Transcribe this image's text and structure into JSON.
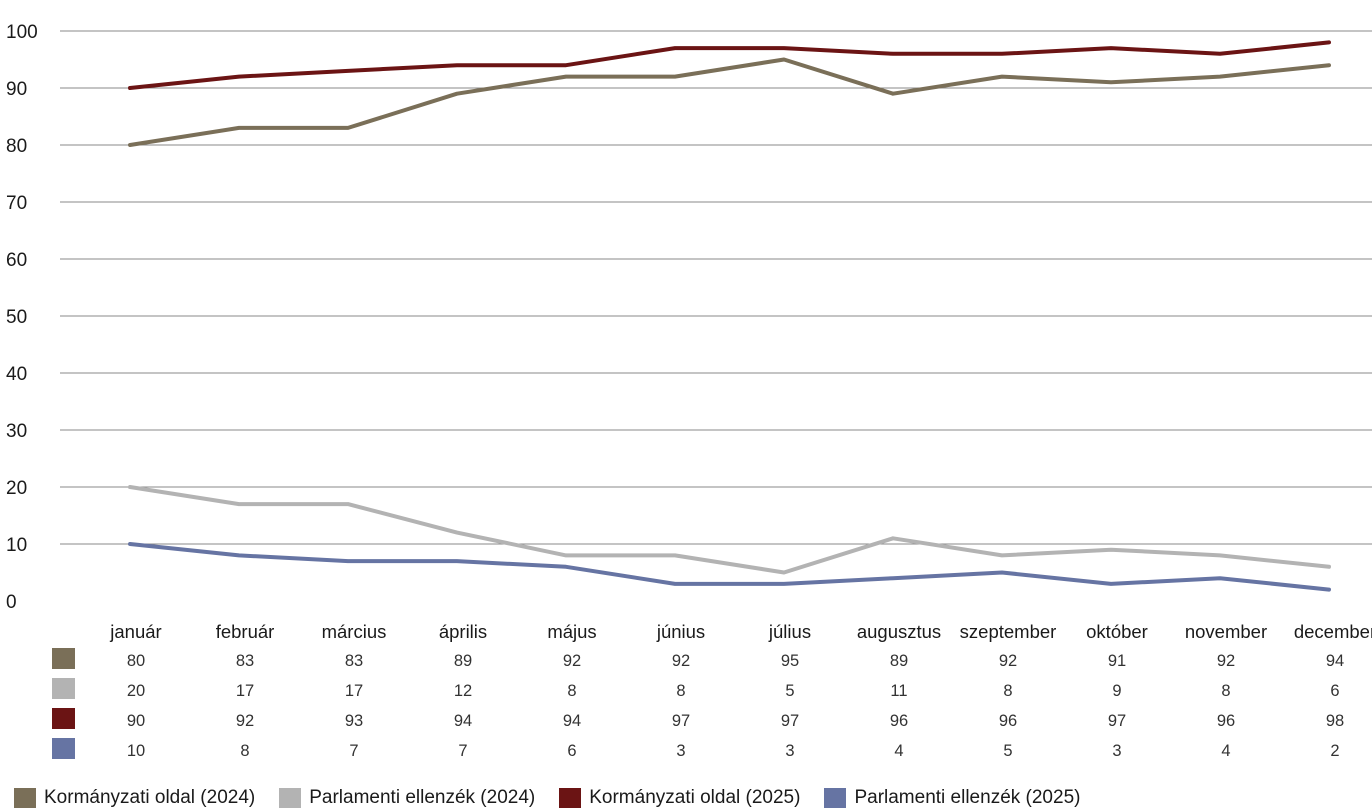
{
  "chart_data": {
    "type": "line",
    "title": "",
    "xlabel": "",
    "ylabel": "",
    "ylim": [
      0,
      100
    ],
    "yticks": [
      0,
      10,
      20,
      30,
      40,
      50,
      60,
      70,
      80,
      90,
      100
    ],
    "grid": true,
    "legend_position": "bottom",
    "categories": [
      "január",
      "február",
      "március",
      "április",
      "május",
      "június",
      "július",
      "augusztus",
      "szeptember",
      "október",
      "november",
      "december"
    ],
    "series": [
      {
        "name": "Kormányzati oldal (2024)",
        "color": "#7a6f58",
        "values": [
          80,
          83,
          83,
          89,
          92,
          92,
          95,
          89,
          92,
          91,
          92,
          94
        ]
      },
      {
        "name": "Parlamenti ellenzék (2024)",
        "color": "#b3b3b3",
        "values": [
          20,
          17,
          17,
          12,
          8,
          8,
          5,
          11,
          8,
          9,
          8,
          6
        ]
      },
      {
        "name": "Kormányzati oldal (2025)",
        "color": "#6b1414",
        "values": [
          90,
          92,
          93,
          94,
          94,
          97,
          97,
          96,
          96,
          97,
          96,
          98
        ]
      },
      {
        "name": "Parlamenti ellenzék (2025)",
        "color": "#6674a3",
        "values": [
          10,
          8,
          7,
          7,
          6,
          3,
          3,
          4,
          5,
          3,
          4,
          2
        ]
      }
    ],
    "table": true
  },
  "legend": [
    {
      "label": "Kormányzati oldal (2024)",
      "color": "#7a6f58"
    },
    {
      "label": "Parlamenti ellenzék (2024)",
      "color": "#b3b3b3"
    },
    {
      "label": "Kormányzati oldal (2025)",
      "color": "#6b1414"
    },
    {
      "label": "Parlamenti ellenzék (2025)",
      "color": "#6674a3"
    }
  ]
}
